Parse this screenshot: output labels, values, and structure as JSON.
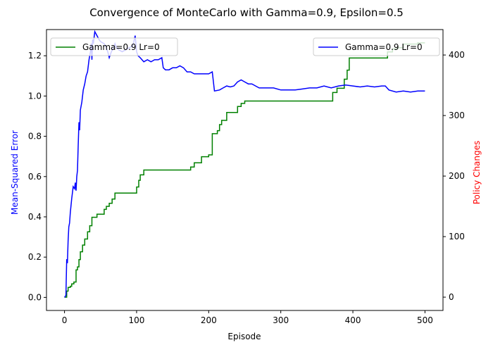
{
  "chart_data": {
    "type": "line",
    "title": "Convergence of MonteCarlo with Gamma=0.9, Epsilon=0.5",
    "xlabel": "Episode",
    "ylabel_left": "Mean-Squared Error",
    "ylabel_right": "Policy Changes",
    "ylabel_left_color": "#0000ff",
    "ylabel_right_color": "#ff0000",
    "xlim": [
      -25,
      525
    ],
    "ylim_left": [
      -0.065,
      1.33
    ],
    "ylim_right": [
      -22,
      442
    ],
    "x_ticks": [
      0,
      100,
      200,
      300,
      400,
      500
    ],
    "y_ticks_left": [
      0.0,
      0.2,
      0.4,
      0.6,
      0.8,
      1.0,
      1.2
    ],
    "y_ticks_right": [
      0,
      100,
      200,
      300,
      400
    ],
    "grid": false,
    "series": [
      {
        "name": "Gamma=0.9 Lr=0",
        "axis": "left",
        "color": "#0000ff",
        "legend_position": "upper-right",
        "points": [
          [
            0,
            0.0
          ],
          [
            2,
            0.01
          ],
          [
            3,
            0.19
          ],
          [
            4,
            0.17
          ],
          [
            5,
            0.28
          ],
          [
            6,
            0.35
          ],
          [
            7,
            0.37
          ],
          [
            8,
            0.42
          ],
          [
            10,
            0.49
          ],
          [
            12,
            0.55
          ],
          [
            14,
            0.54
          ],
          [
            15,
            0.57
          ],
          [
            16,
            0.53
          ],
          [
            17,
            0.6
          ],
          [
            18,
            0.63
          ],
          [
            19,
            0.75
          ],
          [
            20,
            0.87
          ],
          [
            21,
            0.83
          ],
          [
            22,
            0.93
          ],
          [
            24,
            0.97
          ],
          [
            26,
            1.03
          ],
          [
            28,
            1.06
          ],
          [
            30,
            1.1
          ],
          [
            32,
            1.12
          ],
          [
            34,
            1.18
          ],
          [
            36,
            1.22
          ],
          [
            37,
            1.26
          ],
          [
            38,
            1.18
          ],
          [
            39,
            1.28
          ],
          [
            40,
            1.26
          ],
          [
            42,
            1.32
          ],
          [
            45,
            1.3
          ],
          [
            48,
            1.28
          ],
          [
            50,
            1.27
          ],
          [
            55,
            1.26
          ],
          [
            58,
            1.24
          ],
          [
            60,
            1.22
          ],
          [
            62,
            1.19
          ],
          [
            65,
            1.22
          ],
          [
            68,
            1.24
          ],
          [
            70,
            1.26
          ],
          [
            72,
            1.24
          ],
          [
            75,
            1.23
          ],
          [
            80,
            1.22
          ],
          [
            85,
            1.23
          ],
          [
            90,
            1.24
          ],
          [
            95,
            1.25
          ],
          [
            98,
            1.3
          ],
          [
            100,
            1.22
          ],
          [
            102,
            1.2
          ],
          [
            105,
            1.19
          ],
          [
            110,
            1.17
          ],
          [
            115,
            1.18
          ],
          [
            120,
            1.17
          ],
          [
            125,
            1.18
          ],
          [
            130,
            1.18
          ],
          [
            135,
            1.19
          ],
          [
            137,
            1.14
          ],
          [
            140,
            1.13
          ],
          [
            145,
            1.13
          ],
          [
            150,
            1.14
          ],
          [
            155,
            1.14
          ],
          [
            160,
            1.15
          ],
          [
            165,
            1.14
          ],
          [
            170,
            1.12
          ],
          [
            175,
            1.12
          ],
          [
            180,
            1.11
          ],
          [
            185,
            1.11
          ],
          [
            190,
            1.11
          ],
          [
            195,
            1.11
          ],
          [
            200,
            1.11
          ],
          [
            205,
            1.12
          ],
          [
            208,
            1.025
          ],
          [
            215,
            1.03
          ],
          [
            220,
            1.04
          ],
          [
            225,
            1.05
          ],
          [
            230,
            1.045
          ],
          [
            235,
            1.05
          ],
          [
            240,
            1.07
          ],
          [
            245,
            1.08
          ],
          [
            250,
            1.07
          ],
          [
            255,
            1.06
          ],
          [
            260,
            1.06
          ],
          [
            265,
            1.05
          ],
          [
            270,
            1.04
          ],
          [
            280,
            1.04
          ],
          [
            290,
            1.04
          ],
          [
            300,
            1.03
          ],
          [
            310,
            1.03
          ],
          [
            320,
            1.03
          ],
          [
            330,
            1.035
          ],
          [
            340,
            1.04
          ],
          [
            350,
            1.04
          ],
          [
            360,
            1.05
          ],
          [
            370,
            1.04
          ],
          [
            380,
            1.05
          ],
          [
            390,
            1.055
          ],
          [
            400,
            1.05
          ],
          [
            410,
            1.045
          ],
          [
            420,
            1.05
          ],
          [
            430,
            1.045
          ],
          [
            440,
            1.05
          ],
          [
            445,
            1.05
          ],
          [
            450,
            1.03
          ],
          [
            460,
            1.02
          ],
          [
            470,
            1.025
          ],
          [
            480,
            1.02
          ],
          [
            490,
            1.025
          ],
          [
            500,
            1.025
          ]
        ]
      },
      {
        "name": "Gamma=0.9 Lr=0",
        "axis": "right",
        "color": "#008000",
        "legend_position": "upper-left",
        "steps": [
          [
            0,
            0
          ],
          [
            3,
            10
          ],
          [
            5,
            16
          ],
          [
            8,
            18
          ],
          [
            10,
            22
          ],
          [
            13,
            25
          ],
          [
            16,
            45
          ],
          [
            18,
            50
          ],
          [
            20,
            62
          ],
          [
            22,
            75
          ],
          [
            25,
            86
          ],
          [
            28,
            96
          ],
          [
            32,
            108
          ],
          [
            35,
            118
          ],
          [
            38,
            132
          ],
          [
            45,
            137
          ],
          [
            55,
            145
          ],
          [
            58,
            150
          ],
          [
            62,
            155
          ],
          [
            66,
            162
          ],
          [
            70,
            172
          ],
          [
            100,
            182
          ],
          [
            103,
            193
          ],
          [
            105,
            202
          ],
          [
            110,
            210
          ],
          [
            175,
            215
          ],
          [
            180,
            222
          ],
          [
            190,
            232
          ],
          [
            200,
            235
          ],
          [
            205,
            270
          ],
          [
            212,
            275
          ],
          [
            215,
            285
          ],
          [
            218,
            292
          ],
          [
            225,
            305
          ],
          [
            240,
            315
          ],
          [
            245,
            320
          ],
          [
            250,
            324
          ],
          [
            370,
            324
          ],
          [
            372,
            338
          ],
          [
            378,
            345
          ],
          [
            388,
            360
          ],
          [
            392,
            375
          ],
          [
            395,
            395
          ],
          [
            448,
            405
          ],
          [
            455,
            410
          ],
          [
            462,
            412
          ],
          [
            470,
            418
          ],
          [
            490,
            420
          ],
          [
            500,
            420
          ]
        ]
      }
    ]
  }
}
